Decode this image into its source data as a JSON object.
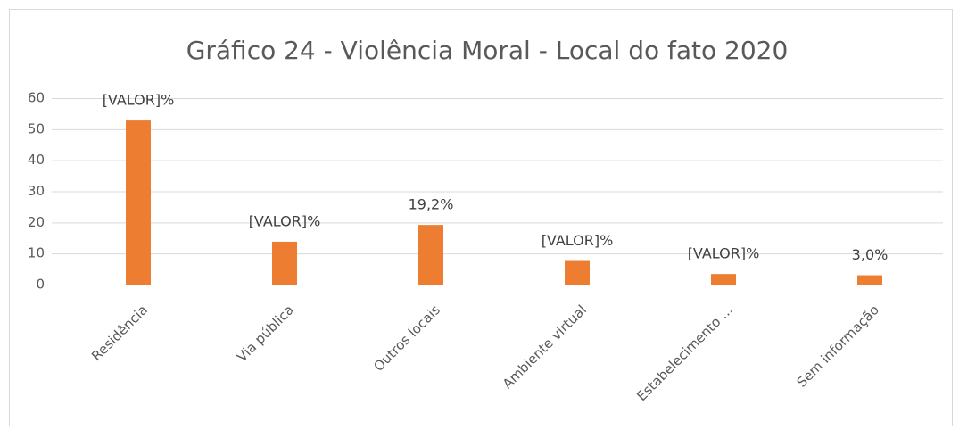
{
  "chart_data": {
    "type": "bar",
    "title": "Gráfico 24 - Violência Moral - Local do fato 2020",
    "categories": [
      "Residência",
      "Via pública",
      "Outros locais",
      "Ambiente virtual",
      "Estabelecimento ...",
      "Sem informação"
    ],
    "values": [
      52.8,
      13.8,
      19.2,
      7.6,
      3.4,
      3.0
    ],
    "value_labels": [
      "[VALOR]%",
      "[VALOR]%",
      "19,2%",
      "[VALOR]%",
      "[VALOR]%",
      "3,0%"
    ],
    "color": "#ed7d31",
    "ylim": [
      0,
      60
    ],
    "yticks": [
      0,
      10,
      20,
      30,
      40,
      50,
      60
    ],
    "grid": true
  }
}
